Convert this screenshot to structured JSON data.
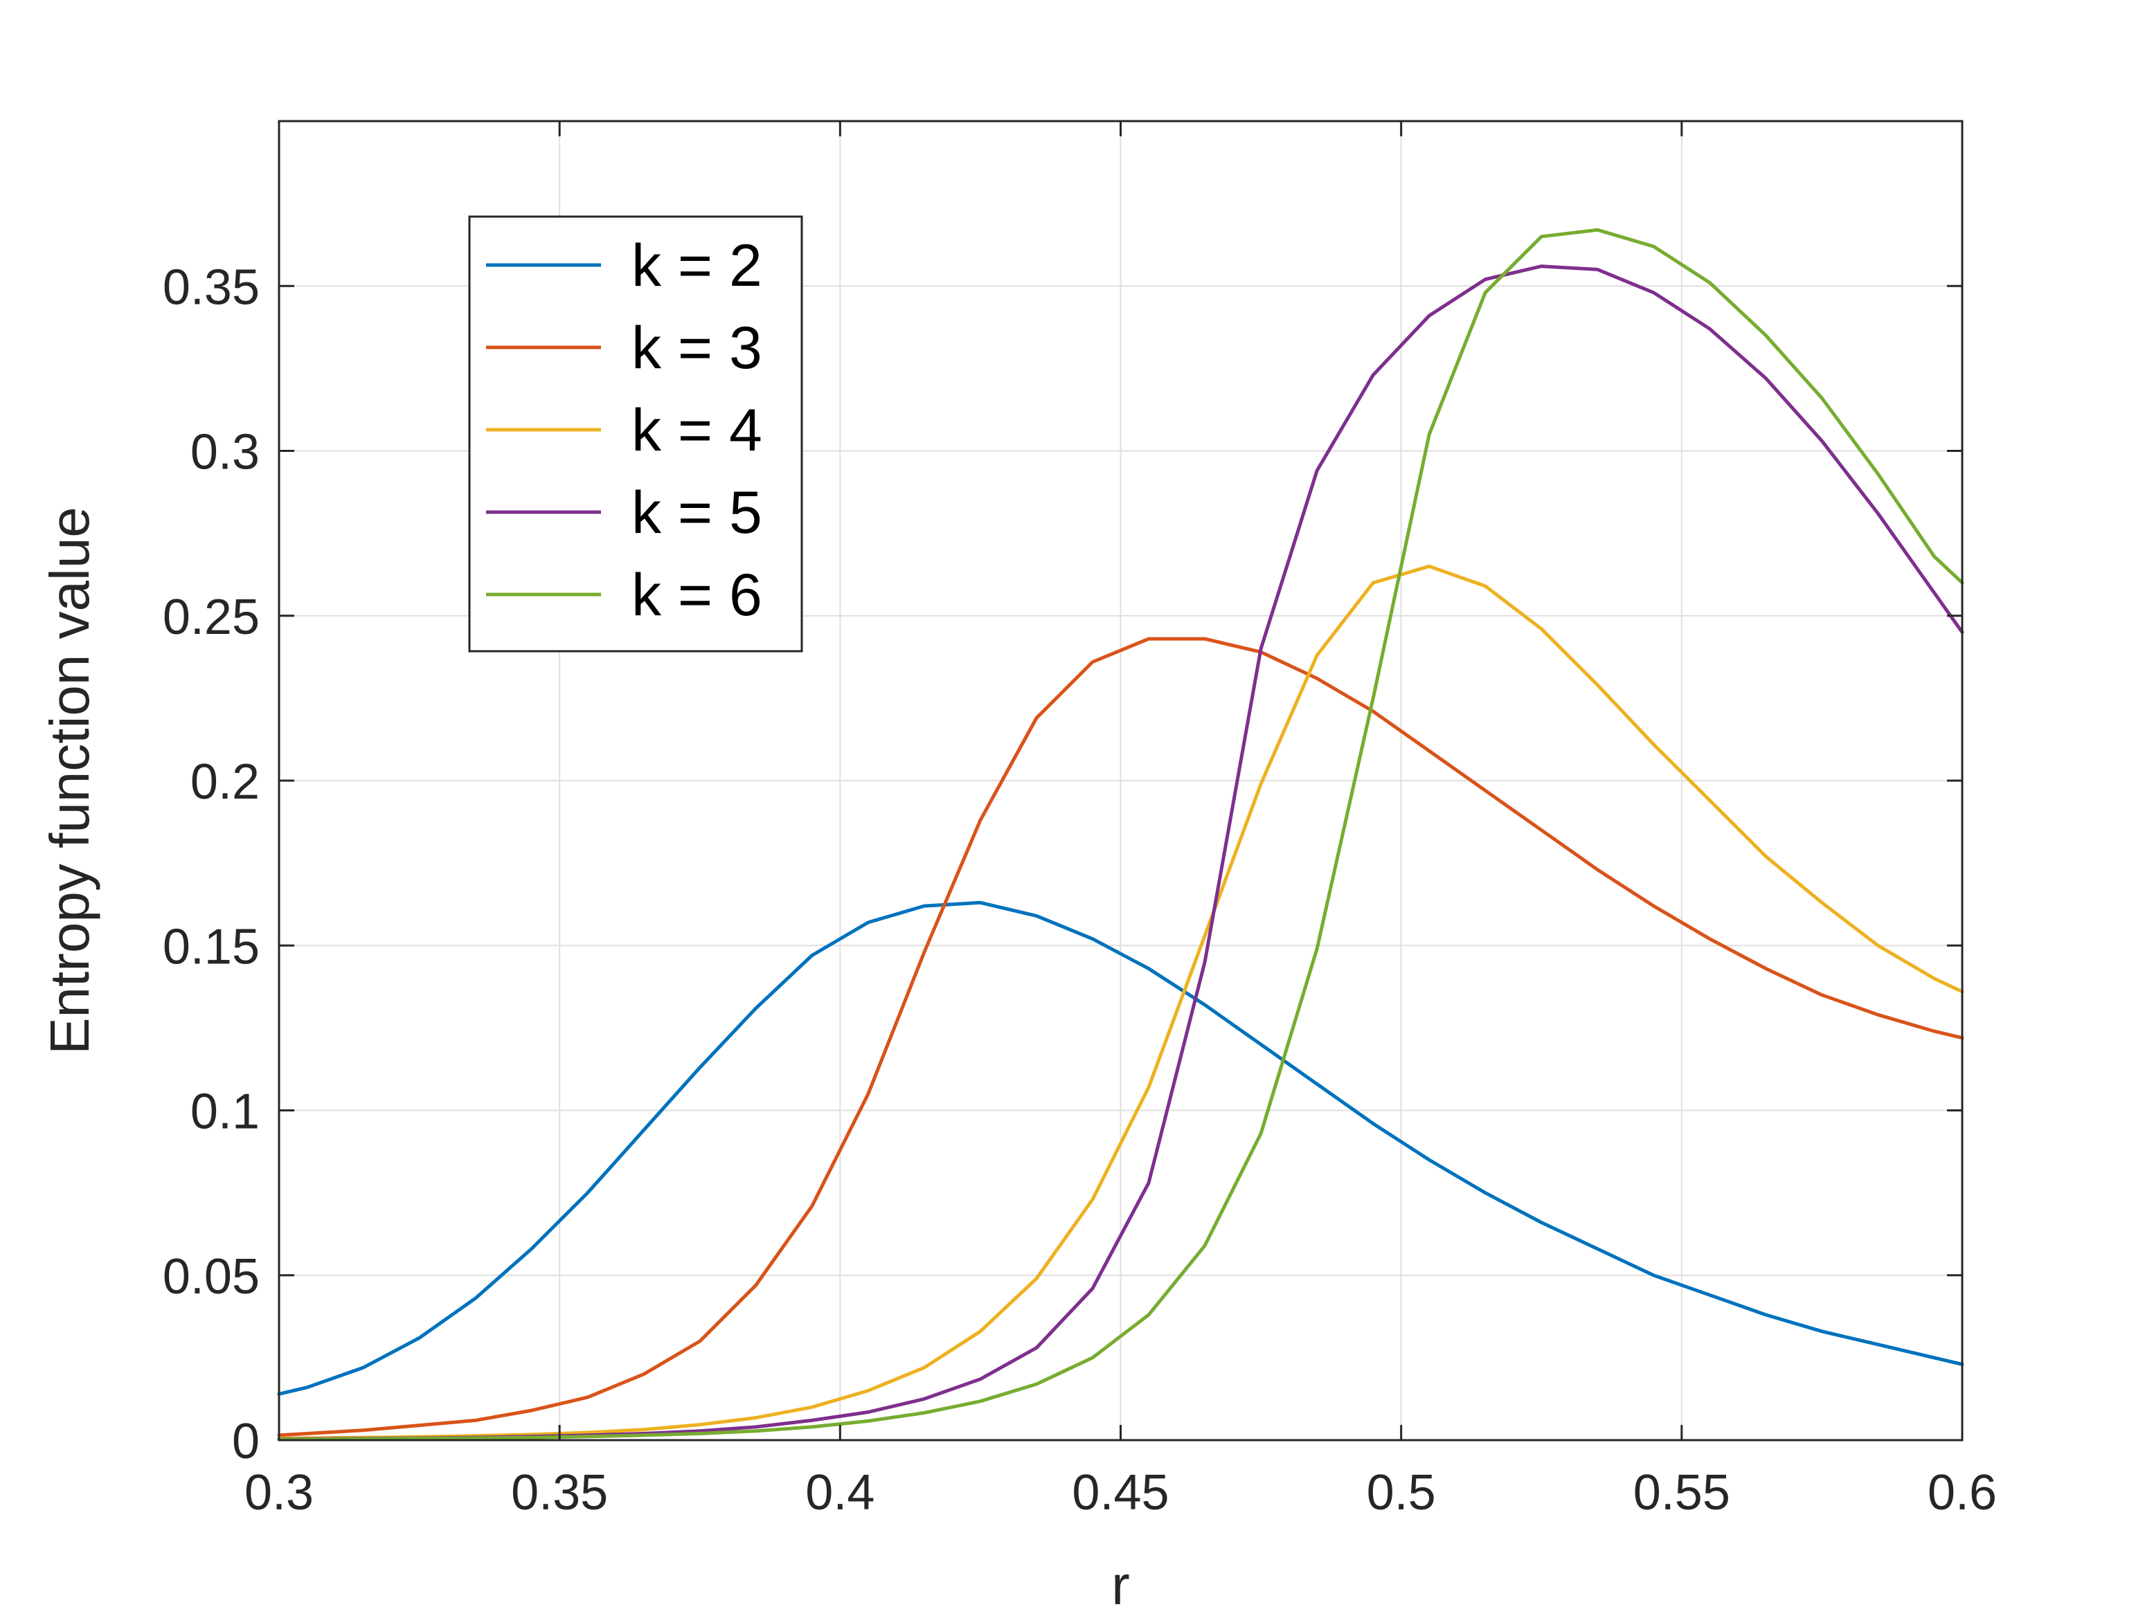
{
  "chart_data": {
    "type": "line",
    "xlabel": "r",
    "ylabel": "Entropy function value",
    "xlim": [
      0.3,
      0.6
    ],
    "ylim": [
      0,
      0.4
    ],
    "xticks": [
      0.3,
      0.35,
      0.4,
      0.45,
      0.5,
      0.55,
      0.6
    ],
    "xtick_labels": [
      "0.3",
      "0.35",
      "0.4",
      "0.45",
      "0.5",
      "0.55",
      "0.6"
    ],
    "yticks": [
      0,
      0.05,
      0.1,
      0.15,
      0.2,
      0.25,
      0.3,
      0.35
    ],
    "ytick_labels": [
      "0",
      "0.05",
      "0.1",
      "0.15",
      "0.2",
      "0.25",
      "0.3",
      "0.35"
    ],
    "grid": true,
    "legend_position": "top-left",
    "x": [
      0.3,
      0.305,
      0.315,
      0.325,
      0.335,
      0.345,
      0.355,
      0.365,
      0.375,
      0.385,
      0.395,
      0.405,
      0.415,
      0.425,
      0.435,
      0.445,
      0.455,
      0.465,
      0.475,
      0.485,
      0.495,
      0.505,
      0.515,
      0.525,
      0.535,
      0.545,
      0.555,
      0.565,
      0.575,
      0.585,
      0.595,
      0.6
    ],
    "series": [
      {
        "name": "k = 2",
        "color": "#0072BD",
        "values": [
          0.014,
          0.016,
          0.022,
          0.031,
          0.043,
          0.058,
          0.075,
          0.094,
          0.113,
          0.131,
          0.147,
          0.157,
          0.162,
          0.163,
          0.159,
          0.152,
          0.143,
          0.132,
          0.12,
          0.108,
          0.096,
          0.085,
          0.075,
          0.066,
          0.058,
          0.05,
          0.044,
          0.038,
          0.033,
          0.029,
          0.025,
          0.023
        ]
      },
      {
        "name": "k = 3",
        "color": "#D95319",
        "values": [
          0.0015,
          0.002,
          0.003,
          0.0045,
          0.006,
          0.009,
          0.013,
          0.02,
          0.03,
          0.047,
          0.071,
          0.105,
          0.148,
          0.188,
          0.219,
          0.236,
          0.243,
          0.243,
          0.239,
          0.231,
          0.221,
          0.209,
          0.197,
          0.185,
          0.173,
          0.162,
          0.152,
          0.143,
          0.135,
          0.129,
          0.124,
          0.122
        ]
      },
      {
        "name": "k = 4",
        "color": "#EDB120",
        "values": [
          0.0005,
          0.0006,
          0.0008,
          0.001,
          0.0013,
          0.0017,
          0.0023,
          0.0032,
          0.0047,
          0.0068,
          0.01,
          0.015,
          0.022,
          0.033,
          0.049,
          0.073,
          0.107,
          0.153,
          0.199,
          0.238,
          0.26,
          0.265,
          0.259,
          0.246,
          0.229,
          0.211,
          0.194,
          0.177,
          0.163,
          0.15,
          0.14,
          0.136
        ]
      },
      {
        "name": "k = 5",
        "color": "#7E2F8E",
        "values": [
          0.0003,
          0.0004,
          0.0005,
          0.0006,
          0.0008,
          0.0011,
          0.0015,
          0.002,
          0.0028,
          0.004,
          0.006,
          0.0085,
          0.0125,
          0.0185,
          0.028,
          0.046,
          0.078,
          0.145,
          0.24,
          0.294,
          0.323,
          0.341,
          0.352,
          0.356,
          0.355,
          0.348,
          0.337,
          0.322,
          0.303,
          0.281,
          0.257,
          0.245
        ]
      },
      {
        "name": "k = 6",
        "color": "#77AC30",
        "values": [
          0.0002,
          0.0003,
          0.0004,
          0.0005,
          0.0006,
          0.0008,
          0.0011,
          0.0015,
          0.002,
          0.0028,
          0.004,
          0.0058,
          0.0083,
          0.0118,
          0.017,
          0.025,
          0.038,
          0.059,
          0.093,
          0.149,
          0.225,
          0.305,
          0.348,
          0.365,
          0.367,
          0.362,
          0.351,
          0.335,
          0.316,
          0.293,
          0.268,
          0.26
        ]
      }
    ]
  }
}
